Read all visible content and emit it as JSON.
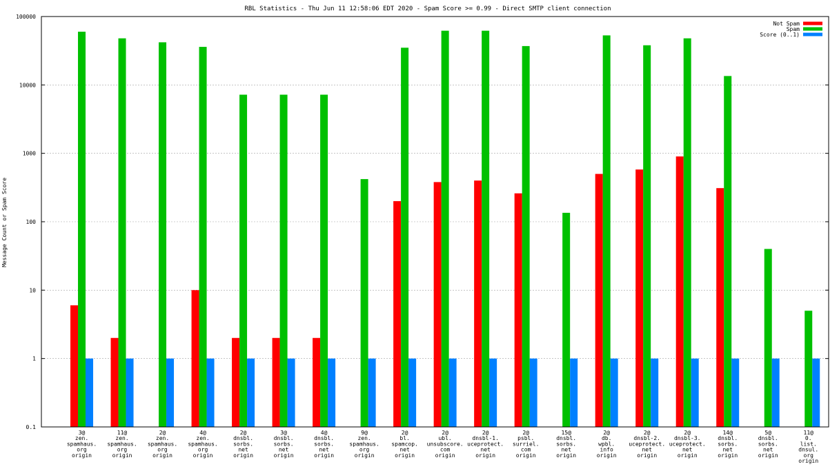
{
  "chart_data": {
    "type": "bar",
    "title": "RBL Statistics - Thu Jun 11 12:58:06 EDT 2020 - Spam Score >= 0.99 - Direct SMTP client connection",
    "xlabel": "",
    "ylabel": "Message Count or Spam Score",
    "yscale": "log",
    "ylim": [
      0.1,
      100000
    ],
    "yticks": [
      "0.1",
      "1",
      "10",
      "100",
      "1000",
      "10000",
      "100000"
    ],
    "grid": true,
    "legend_position": "top-right",
    "categories": [
      [
        "3@",
        "zen.",
        "spamhaus.",
        "org",
        "origin"
      ],
      [
        "11@",
        "zen.",
        "spamhaus.",
        "org",
        "origin"
      ],
      [
        "2@",
        "zen.",
        "spamhaus.",
        "org",
        "origin"
      ],
      [
        "4@",
        "zen.",
        "spamhaus.",
        "org",
        "origin"
      ],
      [
        "2@",
        "dnsbl.",
        "sorbs.",
        "net",
        "origin"
      ],
      [
        "3@",
        "dnsbl.",
        "sorbs.",
        "net",
        "origin"
      ],
      [
        "4@",
        "dnsbl.",
        "sorbs.",
        "net",
        "origin"
      ],
      [
        "9@",
        "zen.",
        "spamhaus.",
        "org",
        "origin"
      ],
      [
        "2@",
        "bl.",
        "spamcop.",
        "net",
        "origin"
      ],
      [
        "2@",
        "ubl.",
        "unsubscore.",
        "com",
        "origin"
      ],
      [
        "2@",
        "dnsbl-1.",
        "uceprotect.",
        "net",
        "origin"
      ],
      [
        "2@",
        "psbl.",
        "surriel.",
        "com",
        "origin"
      ],
      [
        "15@",
        "dnsbl.",
        "sorbs.",
        "net",
        "origin"
      ],
      [
        "2@",
        "db.",
        "wpbl.",
        "info",
        "origin"
      ],
      [
        "2@",
        "dnsbl-2.",
        "uceprotect.",
        "net",
        "origin"
      ],
      [
        "2@",
        "dnsbl-3.",
        "uceprotect.",
        "net",
        "origin"
      ],
      [
        "14@",
        "dnsbl.",
        "sorbs.",
        "net",
        "origin"
      ],
      [
        "5@",
        "dnsbl.",
        "sorbs.",
        "net",
        "origin"
      ],
      [
        "11@",
        "0.",
        "list.",
        "dnsul.",
        "org",
        "origin"
      ]
    ],
    "series": [
      {
        "name": "Not Spam",
        "color": "#ff0000",
        "values": [
          6,
          2,
          null,
          10,
          2,
          2,
          2,
          null,
          200,
          380,
          400,
          260,
          null,
          500,
          580,
          900,
          310,
          null,
          null
        ]
      },
      {
        "name": "Spam",
        "color": "#00c000",
        "values": [
          60000,
          48000,
          42000,
          36000,
          7200,
          7200,
          7200,
          420,
          35000,
          62000,
          62000,
          37000,
          135,
          53000,
          38000,
          48000,
          13500,
          40,
          5
        ]
      },
      {
        "name": "Score (0..1)",
        "color": "#0080ff",
        "values": [
          1,
          1,
          1,
          1,
          1,
          1,
          1,
          1,
          1,
          1,
          1,
          1,
          1,
          1,
          1,
          1,
          1,
          1,
          1
        ]
      }
    ]
  }
}
